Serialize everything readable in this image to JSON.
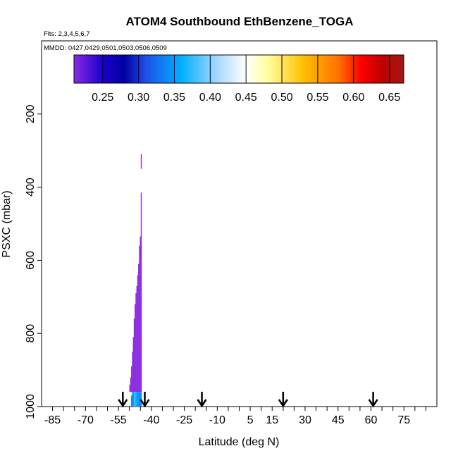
{
  "chart_data": {
    "type": "heatmap",
    "title": "ATOM4 Southbound EthBenzene_TOGA",
    "flights_label": "Flts: 2,3,4,5,6,7",
    "dates_label": "MMDD: 0427,0429,0501,0503,0506,0509",
    "xlabel": "Latitude (deg N)",
    "ylabel": "PSXC (mbar)",
    "xlim": [
      -90,
      90
    ],
    "ylim": [
      1000,
      0
    ],
    "x_ticks": [
      -85,
      -70,
      -55,
      -40,
      -25,
      -10,
      5,
      15,
      30,
      45,
      60,
      75
    ],
    "x_tick_labels": [
      "-85",
      "-70",
      "-55",
      "-40",
      "-25",
      "-10",
      "5",
      "15",
      "30",
      "45",
      "60",
      "75"
    ],
    "y_ticks": [
      200,
      400,
      600,
      800,
      1000
    ],
    "y_tick_labels": [
      "200",
      "400",
      "600",
      "800",
      "1000"
    ],
    "colorbar": {
      "min": 0.21,
      "max": 0.67,
      "ticks": [
        0.25,
        0.3,
        0.35,
        0.4,
        0.45,
        0.5,
        0.55,
        0.6,
        0.65
      ],
      "tick_labels": [
        "0.25",
        "0.30",
        "0.35",
        "0.40",
        "0.45",
        "0.50",
        "0.55",
        "0.60",
        "0.65"
      ],
      "stops": [
        {
          "v": 0.21,
          "c": "#8a2be2"
        },
        {
          "v": 0.25,
          "c": "#1a00cc"
        },
        {
          "v": 0.28,
          "c": "#0000a0"
        },
        {
          "v": 0.31,
          "c": "#1e50e6"
        },
        {
          "v": 0.36,
          "c": "#00b0ff"
        },
        {
          "v": 0.41,
          "c": "#a8d8ff"
        },
        {
          "v": 0.45,
          "c": "#ffffff"
        },
        {
          "v": 0.48,
          "c": "#ffffa0"
        },
        {
          "v": 0.53,
          "c": "#ffc000"
        },
        {
          "v": 0.58,
          "c": "#ff7000"
        },
        {
          "v": 0.61,
          "c": "#ff0000"
        },
        {
          "v": 0.64,
          "c": "#c00000"
        },
        {
          "v": 0.67,
          "c": "#a01818"
        }
      ]
    },
    "cells": [
      {
        "lat": -44.6,
        "p_top": 310,
        "p_bot": 350,
        "value": 0.21
      },
      {
        "lat": -44.6,
        "p_top": 415,
        "p_bot": 960,
        "value": 0.21
      },
      {
        "lat": -45.0,
        "p_top": 535,
        "p_bot": 960,
        "value": 0.21
      },
      {
        "lat": -45.4,
        "p_top": 560,
        "p_bot": 960,
        "value": 0.21
      },
      {
        "lat": -45.8,
        "p_top": 610,
        "p_bot": 960,
        "value": 0.21
      },
      {
        "lat": -46.2,
        "p_top": 640,
        "p_bot": 960,
        "value": 0.21
      },
      {
        "lat": -46.6,
        "p_top": 670,
        "p_bot": 960,
        "value": 0.21
      },
      {
        "lat": -47.0,
        "p_top": 690,
        "p_bot": 960,
        "value": 0.21
      },
      {
        "lat": -47.4,
        "p_top": 720,
        "p_bot": 960,
        "value": 0.21
      },
      {
        "lat": -47.8,
        "p_top": 760,
        "p_bot": 960,
        "value": 0.21
      },
      {
        "lat": -48.2,
        "p_top": 810,
        "p_bot": 960,
        "value": 0.21
      },
      {
        "lat": -48.6,
        "p_top": 850,
        "p_bot": 960,
        "value": 0.21
      },
      {
        "lat": -49.0,
        "p_top": 890,
        "p_bot": 960,
        "value": 0.21
      },
      {
        "lat": -49.4,
        "p_top": 920,
        "p_bot": 960,
        "value": 0.21
      },
      {
        "lat": -49.8,
        "p_top": 940,
        "p_bot": 960,
        "value": 0.21
      },
      {
        "lat": -44.6,
        "p_top": 960,
        "p_bot": 1000,
        "value": 0.34
      },
      {
        "lat": -45.0,
        "p_top": 960,
        "p_bot": 1000,
        "value": 0.34
      },
      {
        "lat": -45.4,
        "p_top": 960,
        "p_bot": 1000,
        "value": 0.34
      },
      {
        "lat": -45.8,
        "p_top": 960,
        "p_bot": 1000,
        "value": 0.34
      },
      {
        "lat": -46.2,
        "p_top": 960,
        "p_bot": 1000,
        "value": 0.35
      },
      {
        "lat": -46.6,
        "p_top": 960,
        "p_bot": 1000,
        "value": 0.35
      },
      {
        "lat": -47.0,
        "p_top": 960,
        "p_bot": 1000,
        "value": 0.36
      },
      {
        "lat": -47.4,
        "p_top": 960,
        "p_bot": 1000,
        "value": 0.37
      },
      {
        "lat": -47.8,
        "p_top": 960,
        "p_bot": 1000,
        "value": 0.38
      },
      {
        "lat": -48.2,
        "p_top": 960,
        "p_bot": 1000,
        "value": 0.35
      },
      {
        "lat": -48.6,
        "p_top": 960,
        "p_bot": 1000,
        "value": 0.34
      },
      {
        "lat": -49.0,
        "p_top": 970,
        "p_bot": 1000,
        "value": 0.33
      }
    ],
    "arrows_lat": [
      -53,
      -43,
      -17,
      20,
      61
    ]
  }
}
